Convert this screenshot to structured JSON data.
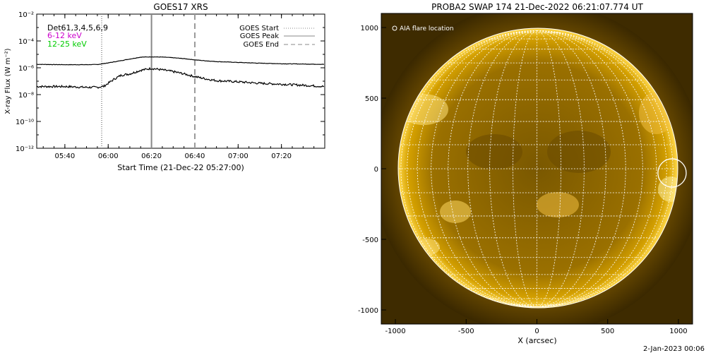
{
  "chart_data": [
    {
      "type": "line",
      "title": "GOES17 XRS",
      "xlabel": "Start Time (21-Dec-22 05:27:00)",
      "ylabel": "X-ray Flux (W m⁻²)",
      "yscale": "log",
      "ylim": [
        1e-12,
        0.01
      ],
      "xlim": [
        "05:27",
        "07:40"
      ],
      "x_ticks": [
        "05:40",
        "06:00",
        "06:20",
        "06:40",
        "07:00",
        "07:20"
      ],
      "y_ticks": [
        "10⁻¹²",
        "10⁻¹⁰",
        "10⁻⁸",
        "10⁻⁶",
        "10⁻⁴",
        "10⁻²"
      ],
      "detector_label": "Det61,3,4,5,6,9",
      "series_labels": [
        {
          "name": "6-12 keV",
          "color": "#cc00cc"
        },
        {
          "name": "12-25 keV",
          "color": "#00cc00"
        }
      ],
      "legend": [
        {
          "name": "GOES Start",
          "style": "dotted"
        },
        {
          "name": "GOES Peak",
          "style": "solid"
        },
        {
          "name": "GOES End",
          "style": "dashed"
        }
      ],
      "event_lines": {
        "start": "05:57",
        "peak": "06:20",
        "end": "06:40"
      },
      "series": [
        {
          "band": "long",
          "x": [
            "05:27",
            "05:40",
            "05:50",
            "05:55",
            "06:00",
            "06:05",
            "06:10",
            "06:15",
            "06:20",
            "06:25",
            "06:30",
            "06:35",
            "06:40",
            "06:45",
            "06:50",
            "07:00",
            "07:10",
            "07:20",
            "07:30",
            "07:40"
          ],
          "y": [
            1.8e-06,
            1.7e-06,
            1.7e-06,
            1.75e-06,
            2.3e-06,
            3.2e-06,
            4.5e-06,
            6.2e-06,
            6.5e-06,
            6.3e-06,
            5.6e-06,
            4.8e-06,
            3.9e-06,
            3.3e-06,
            2.9e-06,
            2.5e-06,
            2.2e-06,
            2e-06,
            1.9e-06,
            1.8e-06
          ]
        },
        {
          "band": "short",
          "x": [
            "05:27",
            "05:40",
            "05:50",
            "05:55",
            "05:58",
            "06:00",
            "06:03",
            "06:06",
            "06:10",
            "06:15",
            "06:20",
            "06:25",
            "06:30",
            "06:35",
            "06:40",
            "06:45",
            "06:50",
            "07:00",
            "07:10",
            "07:20",
            "07:30",
            "07:40"
          ],
          "y": [
            4e-08,
            4e-08,
            3.5e-08,
            3.5e-08,
            4.2e-08,
            7e-08,
            1.5e-07,
            2.8e-07,
            3.5e-07,
            6.5e-07,
            9e-07,
            7e-07,
            5.2e-07,
            3.5e-07,
            2.2e-07,
            1.5e-07,
            1.1e-07,
            9e-08,
            7e-08,
            6e-08,
            5e-08,
            4e-08
          ]
        }
      ]
    },
    {
      "type": "image",
      "title": "PROBA2 SWAP 174 21-Dec-2022 06:21:07.774 UT",
      "xlabel": "X (arcsec)",
      "xlim": [
        -1100,
        1100
      ],
      "ylim": [
        -1100,
        1100
      ],
      "x_ticks": [
        -1000,
        -500,
        0,
        500,
        1000
      ],
      "y_ticks": [
        -1000,
        -500,
        0,
        500,
        1000
      ],
      "solar_radius_arcsec": 976,
      "legend": "AIA flare location",
      "flare_location": {
        "x": 955,
        "y": -30,
        "radius": 100
      },
      "colors": {
        "sun_core": "#8a6400",
        "sun_rim": "#ffd040",
        "corona": "#5a3e00",
        "grid": "#ffffff"
      }
    }
  ],
  "footer_date": "2-Jan-2023 00:06"
}
